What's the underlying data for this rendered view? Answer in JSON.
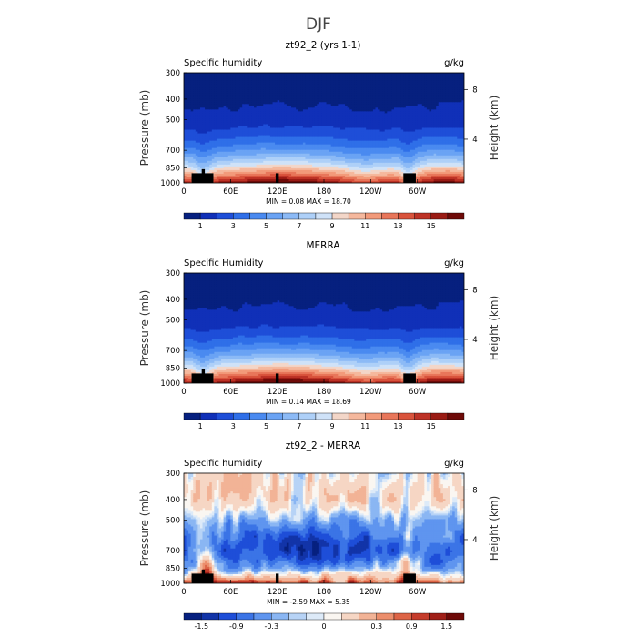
{
  "figure_title": "DJF",
  "chart_data": [
    {
      "type": "heatmap",
      "title": "zt92_2 (yrs 1-1)",
      "left_label": "Specific humidity",
      "units": "g/kg",
      "ylabel": "Pressure (mb)",
      "ylabel_right": "Height (km)",
      "x_ticks": [
        "0",
        "60E",
        "120E",
        "180",
        "120W",
        "60W"
      ],
      "y_ticks": [
        "300",
        "400",
        "500",
        "700",
        "850",
        "1000"
      ],
      "height_ticks": [
        "8",
        "4"
      ],
      "stats": {
        "min_label": "MIN =",
        "min": "0.08",
        "max_label": "MAX =",
        "max": "18.70"
      },
      "colorbar_labels": [
        "1",
        "3",
        "5",
        "7",
        "9",
        "11",
        "13",
        "15"
      ],
      "colorbar_colors": [
        "#06207f",
        "#1030b8",
        "#1e4ed8",
        "#2f6fe8",
        "#4a8af0",
        "#6aa3f4",
        "#8cbaf6",
        "#aed0f8",
        "#cfe2f8",
        "#f3d6c8",
        "#f5b89d",
        "#f29a7a",
        "#e8765a",
        "#d9533c",
        "#bd3226",
        "#9a1b14",
        "#6e0a08"
      ],
      "field": "q"
    },
    {
      "type": "heatmap",
      "title": "MERRA",
      "left_label": "Specific Humidity",
      "units": "g/kg",
      "ylabel": "Pressure (mb)",
      "ylabel_right": "Height (km)",
      "x_ticks": [
        "0",
        "60E",
        "120E",
        "180",
        "120W",
        "60W"
      ],
      "y_ticks": [
        "300",
        "400",
        "500",
        "700",
        "850",
        "1000"
      ],
      "height_ticks": [
        "8",
        "4"
      ],
      "stats": {
        "min_label": "MIN =",
        "min": "0.14",
        "max_label": "MAX =",
        "max": "18.69"
      },
      "colorbar_labels": [
        "1",
        "3",
        "5",
        "7",
        "9",
        "11",
        "13",
        "15"
      ],
      "colorbar_colors": [
        "#06207f",
        "#1030b8",
        "#1e4ed8",
        "#2f6fe8",
        "#4a8af0",
        "#6aa3f4",
        "#8cbaf6",
        "#aed0f8",
        "#cfe2f8",
        "#f3d6c8",
        "#f5b89d",
        "#f29a7a",
        "#e8765a",
        "#d9533c",
        "#bd3226",
        "#9a1b14",
        "#6e0a08"
      ],
      "field": "q"
    },
    {
      "type": "heatmap",
      "title": "zt92_2 - MERRA",
      "left_label": "Specific humidity",
      "units": "g/kg",
      "ylabel": "Pressure (mb)",
      "ylabel_right": "Height (km)",
      "x_ticks": [
        "0",
        "60E",
        "120E",
        "180",
        "120W",
        "60W"
      ],
      "y_ticks": [
        "300",
        "400",
        "500",
        "700",
        "850",
        "1000"
      ],
      "height_ticks": [
        "8",
        "4"
      ],
      "stats": {
        "min_label": "MIN =",
        "min": "-2.59",
        "max_label": "MAX =",
        "max": "5.35"
      },
      "colorbar_labels": [
        "-1.5",
        "-0.9",
        "-0.3",
        "0",
        "0.3",
        "0.9",
        "1.5"
      ],
      "colorbar_colors": [
        "#06207f",
        "#1234a8",
        "#1e4ed8",
        "#3b74e6",
        "#5f95ef",
        "#8ab6f3",
        "#b7d3f6",
        "#ddeaf8",
        "#faf6f1",
        "#f6d6c4",
        "#f2b396",
        "#ec8e6c",
        "#dd6446",
        "#c53c2b",
        "#a01f18",
        "#6e0a08"
      ],
      "field": "diff"
    }
  ]
}
